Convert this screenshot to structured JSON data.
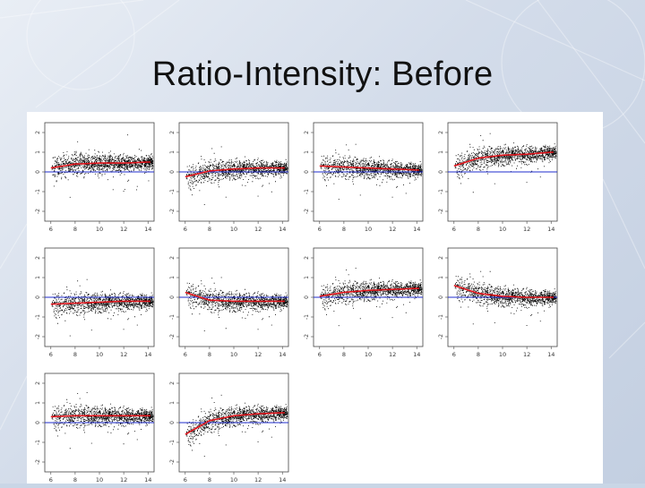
{
  "slide": {
    "title": "Ratio-Intensity: Before"
  },
  "chart_data": {
    "type": "scatter",
    "x_ticks": [
      6,
      8,
      10,
      12,
      14
    ],
    "y_ticks": [
      -2,
      -1,
      0,
      1,
      2
    ],
    "xlim": [
      5.5,
      14.5
    ],
    "ylim": [
      -2.5,
      2.5
    ],
    "reference_line": 0,
    "colors": {
      "points": "#000000",
      "loess": "#e0141b",
      "zero_line": "#1f2ccc"
    },
    "panels": [
      {
        "fit": [
          [
            6,
            0.2
          ],
          [
            8,
            0.4
          ],
          [
            10,
            0.45
          ],
          [
            12,
            0.45
          ],
          [
            14,
            0.5
          ]
        ]
      },
      {
        "fit": [
          [
            6,
            -0.25
          ],
          [
            8,
            0.05
          ],
          [
            10,
            0.15
          ],
          [
            12,
            0.2
          ],
          [
            14,
            0.2
          ]
        ]
      },
      {
        "fit": [
          [
            6,
            0.3
          ],
          [
            8,
            0.25
          ],
          [
            10,
            0.2
          ],
          [
            12,
            0.15
          ],
          [
            14,
            0.1
          ]
        ]
      },
      {
        "fit": [
          [
            6,
            0.3
          ],
          [
            8,
            0.7
          ],
          [
            10,
            0.85
          ],
          [
            12,
            0.9
          ],
          [
            14,
            1.0
          ]
        ]
      },
      {
        "fit": [
          [
            6,
            -0.35
          ],
          [
            8,
            -0.3
          ],
          [
            10,
            -0.25
          ],
          [
            12,
            -0.2
          ],
          [
            14,
            -0.2
          ]
        ]
      },
      {
        "fit": [
          [
            6,
            0.25
          ],
          [
            8,
            -0.15
          ],
          [
            10,
            -0.2
          ],
          [
            12,
            -0.2
          ],
          [
            14,
            -0.2
          ]
        ]
      },
      {
        "fit": [
          [
            6,
            0.05
          ],
          [
            8,
            0.25
          ],
          [
            10,
            0.35
          ],
          [
            12,
            0.4
          ],
          [
            14,
            0.45
          ]
        ]
      },
      {
        "fit": [
          [
            6,
            0.6
          ],
          [
            8,
            0.2
          ],
          [
            10,
            0.05
          ],
          [
            12,
            0.0
          ],
          [
            14,
            0.0
          ]
        ]
      },
      {
        "fit": [
          [
            6,
            0.3
          ],
          [
            8,
            0.35
          ],
          [
            10,
            0.35
          ],
          [
            12,
            0.35
          ],
          [
            14,
            0.35
          ]
        ]
      },
      {
        "fit": [
          [
            6,
            -0.6
          ],
          [
            8,
            0.1
          ],
          [
            10,
            0.35
          ],
          [
            12,
            0.45
          ],
          [
            14,
            0.5
          ]
        ]
      }
    ]
  }
}
